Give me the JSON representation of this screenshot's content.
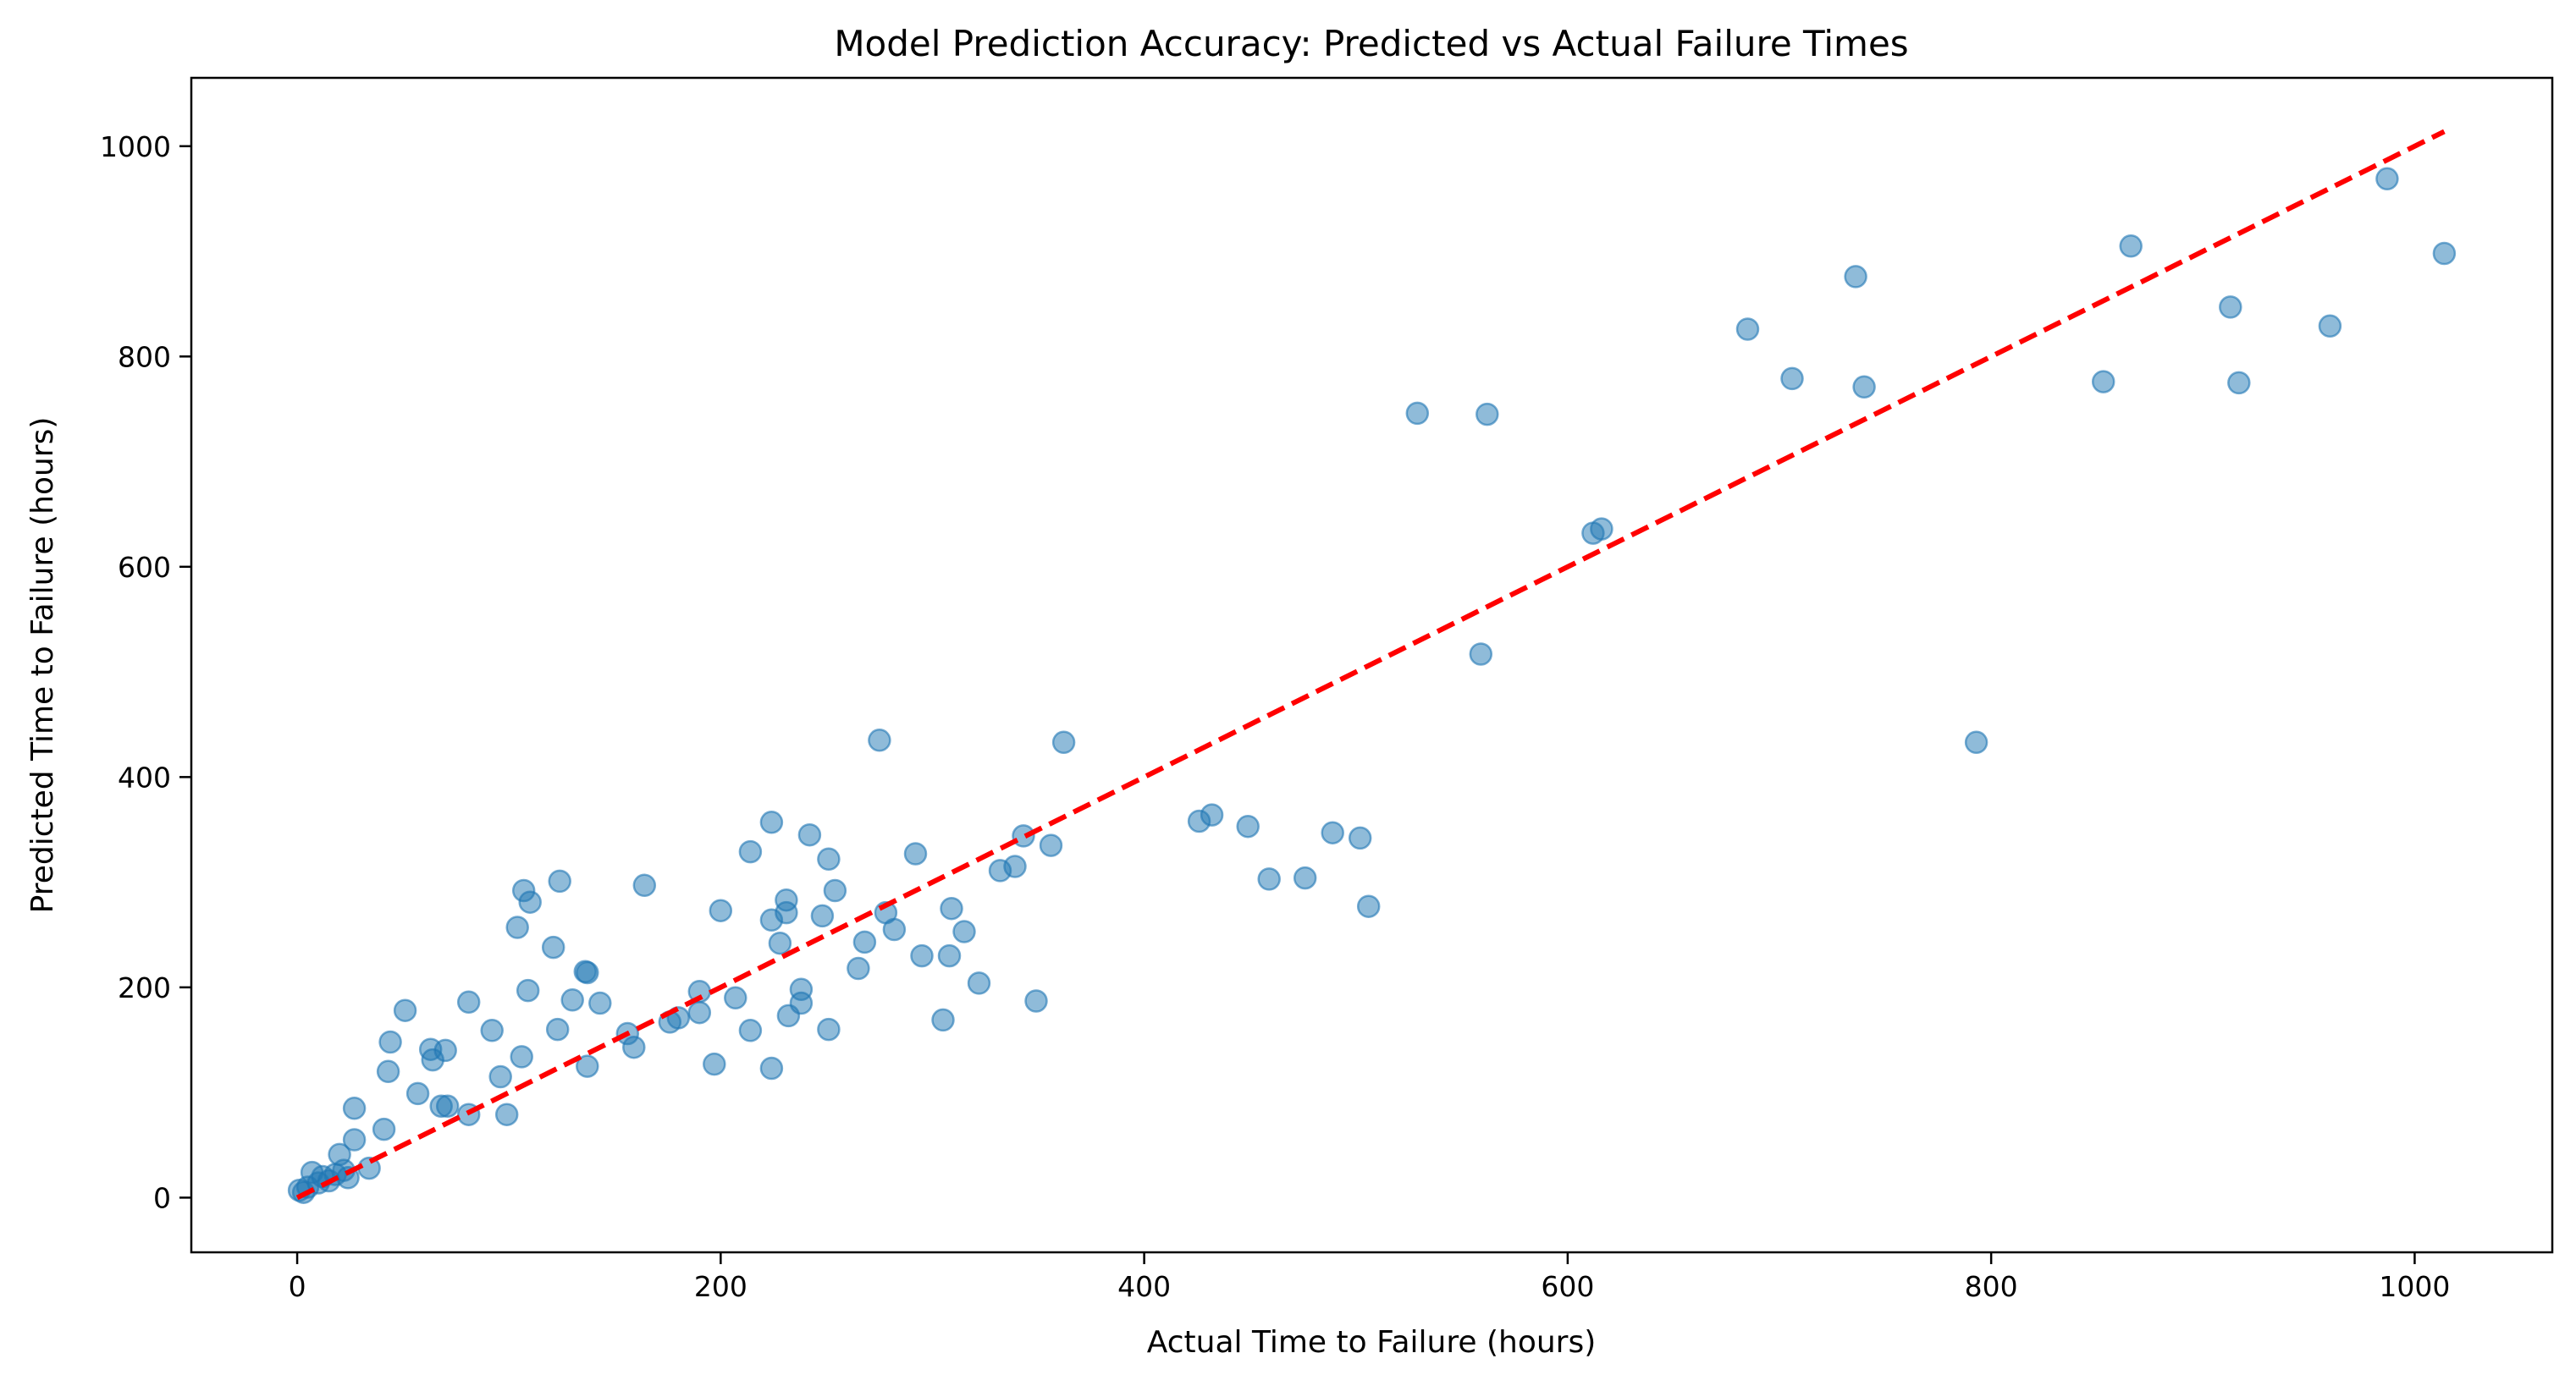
{
  "chart_data": {
    "type": "scatter",
    "title": "Model Prediction Accuracy: Predicted vs Actual Failure Times",
    "xlabel": "Actual Time to Failure (hours)",
    "ylabel": "Predicted Time to Failure (hours)",
    "xlim": [
      -50,
      1065
    ],
    "ylim": [
      -52,
      1065
    ],
    "xticks": [
      0,
      200,
      400,
      600,
      800,
      1000
    ],
    "yticks": [
      0,
      200,
      400,
      600,
      800,
      1000
    ],
    "grid": false,
    "legend": "none",
    "colors": {
      "points": "#1f77b4",
      "reference_line": "#ff0000"
    },
    "reference_line": {
      "style": "dashed",
      "x": [
        0,
        1014
      ],
      "y": [
        0,
        1014
      ]
    },
    "points": [
      {
        "x": 1,
        "y": 7
      },
      {
        "x": 3,
        "y": 5
      },
      {
        "x": 5,
        "y": 10
      },
      {
        "x": 7,
        "y": 24
      },
      {
        "x": 10,
        "y": 14
      },
      {
        "x": 12,
        "y": 20
      },
      {
        "x": 15,
        "y": 16
      },
      {
        "x": 18,
        "y": 22
      },
      {
        "x": 20,
        "y": 41
      },
      {
        "x": 22,
        "y": 26
      },
      {
        "x": 24,
        "y": 19
      },
      {
        "x": 27,
        "y": 55
      },
      {
        "x": 27,
        "y": 85
      },
      {
        "x": 34,
        "y": 28
      },
      {
        "x": 41,
        "y": 65
      },
      {
        "x": 43,
        "y": 120
      },
      {
        "x": 44,
        "y": 148
      },
      {
        "x": 51,
        "y": 178
      },
      {
        "x": 57,
        "y": 99
      },
      {
        "x": 63,
        "y": 141
      },
      {
        "x": 64,
        "y": 131
      },
      {
        "x": 68,
        "y": 87
      },
      {
        "x": 70,
        "y": 140
      },
      {
        "x": 71,
        "y": 87
      },
      {
        "x": 81,
        "y": 79
      },
      {
        "x": 81,
        "y": 186
      },
      {
        "x": 92,
        "y": 159
      },
      {
        "x": 96,
        "y": 115
      },
      {
        "x": 99,
        "y": 79
      },
      {
        "x": 104,
        "y": 257
      },
      {
        "x": 106,
        "y": 134
      },
      {
        "x": 107,
        "y": 292
      },
      {
        "x": 109,
        "y": 197
      },
      {
        "x": 110,
        "y": 281
      },
      {
        "x": 121,
        "y": 238
      },
      {
        "x": 123,
        "y": 160
      },
      {
        "x": 124,
        "y": 301
      },
      {
        "x": 130,
        "y": 188
      },
      {
        "x": 136,
        "y": 215
      },
      {
        "x": 137,
        "y": 214
      },
      {
        "x": 137,
        "y": 125
      },
      {
        "x": 143,
        "y": 185
      },
      {
        "x": 156,
        "y": 156
      },
      {
        "x": 159,
        "y": 143
      },
      {
        "x": 164,
        "y": 297
      },
      {
        "x": 176,
        "y": 167
      },
      {
        "x": 180,
        "y": 171
      },
      {
        "x": 190,
        "y": 196
      },
      {
        "x": 190,
        "y": 176
      },
      {
        "x": 197,
        "y": 127
      },
      {
        "x": 200,
        "y": 273
      },
      {
        "x": 207,
        "y": 190
      },
      {
        "x": 214,
        "y": 159
      },
      {
        "x": 214,
        "y": 329
      },
      {
        "x": 224,
        "y": 264
      },
      {
        "x": 224,
        "y": 357
      },
      {
        "x": 224,
        "y": 123
      },
      {
        "x": 228,
        "y": 242
      },
      {
        "x": 231,
        "y": 271
      },
      {
        "x": 231,
        "y": 283
      },
      {
        "x": 232,
        "y": 173
      },
      {
        "x": 238,
        "y": 198
      },
      {
        "x": 238,
        "y": 185
      },
      {
        "x": 242,
        "y": 345
      },
      {
        "x": 248,
        "y": 268
      },
      {
        "x": 251,
        "y": 322
      },
      {
        "x": 251,
        "y": 160
      },
      {
        "x": 254,
        "y": 292
      },
      {
        "x": 265,
        "y": 218
      },
      {
        "x": 268,
        "y": 243
      },
      {
        "x": 275,
        "y": 435
      },
      {
        "x": 278,
        "y": 271
      },
      {
        "x": 282,
        "y": 255
      },
      {
        "x": 292,
        "y": 327
      },
      {
        "x": 295,
        "y": 230
      },
      {
        "x": 305,
        "y": 169
      },
      {
        "x": 308,
        "y": 230
      },
      {
        "x": 309,
        "y": 275
      },
      {
        "x": 315,
        "y": 253
      },
      {
        "x": 322,
        "y": 204
      },
      {
        "x": 332,
        "y": 311
      },
      {
        "x": 339,
        "y": 315
      },
      {
        "x": 343,
        "y": 344
      },
      {
        "x": 349,
        "y": 187
      },
      {
        "x": 356,
        "y": 335
      },
      {
        "x": 362,
        "y": 433
      },
      {
        "x": 426,
        "y": 358
      },
      {
        "x": 432,
        "y": 364
      },
      {
        "x": 449,
        "y": 353
      },
      {
        "x": 459,
        "y": 303
      },
      {
        "x": 476,
        "y": 304
      },
      {
        "x": 489,
        "y": 347
      },
      {
        "x": 502,
        "y": 342
      },
      {
        "x": 506,
        "y": 277
      },
      {
        "x": 529,
        "y": 746
      },
      {
        "x": 559,
        "y": 517
      },
      {
        "x": 562,
        "y": 745
      },
      {
        "x": 612,
        "y": 632
      },
      {
        "x": 616,
        "y": 636
      },
      {
        "x": 685,
        "y": 826
      },
      {
        "x": 706,
        "y": 779
      },
      {
        "x": 736,
        "y": 876
      },
      {
        "x": 740,
        "y": 771
      },
      {
        "x": 793,
        "y": 433
      },
      {
        "x": 853,
        "y": 776
      },
      {
        "x": 866,
        "y": 905
      },
      {
        "x": 913,
        "y": 847
      },
      {
        "x": 917,
        "y": 775
      },
      {
        "x": 960,
        "y": 829
      },
      {
        "x": 987,
        "y": 969
      },
      {
        "x": 1014,
        "y": 898
      }
    ]
  }
}
